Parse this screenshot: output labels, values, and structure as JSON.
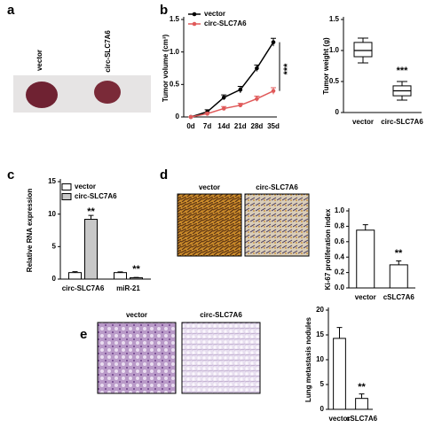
{
  "panel_labels": [
    "a",
    "b",
    "c",
    "d",
    "e"
  ],
  "image_labels": {
    "a": [
      "vector",
      "circ-SLC7A6"
    ],
    "d": [
      "vector",
      "circ-SLC7A6"
    ],
    "e": [
      "vector",
      "circ-SLC7A6"
    ]
  },
  "chart_data": [
    {
      "type": "line",
      "ylabel": "Tumor volume (cm³)",
      "categories": [
        "0d",
        "7d",
        "14d",
        "21d",
        "28d",
        "35d"
      ],
      "series": [
        {
          "name": "vector",
          "color": "#000000",
          "values": [
            0,
            0.08,
            0.3,
            0.42,
            0.75,
            1.15
          ],
          "errors": [
            0,
            0.03,
            0.04,
            0.05,
            0.05,
            0.06
          ]
        },
        {
          "name": "circ-SLC7A6",
          "color": "#e05a5a",
          "values": [
            0,
            0.05,
            0.13,
            0.18,
            0.28,
            0.4
          ],
          "errors": [
            0,
            0.02,
            0.03,
            0.03,
            0.04,
            0.05
          ]
        }
      ],
      "ylim": [
        0,
        1.5
      ],
      "yticks": [
        0,
        0.5,
        {
          "value": 1,
          "label": "1.0"
        },
        1.5
      ],
      "annotations": [
        "***"
      ]
    },
    {
      "type": "box",
      "ylabel": "Tumor weight (g)",
      "categories": [
        "vector",
        "circ-SLC7A6"
      ],
      "boxes": [
        {
          "min": 0.8,
          "q1": 0.9,
          "median": 1.0,
          "q3": 1.13,
          "max": 1.2
        },
        {
          "min": 0.2,
          "q1": 0.27,
          "median": 0.35,
          "q3": 0.43,
          "max": 0.5
        }
      ],
      "color": "#ffffff",
      "ylim": [
        0,
        1.5
      ],
      "yticks": [
        0,
        0.5,
        {
          "value": 1,
          "label": "1.0"
        },
        1.5
      ],
      "annotations": [
        "***"
      ]
    },
    {
      "type": "bar",
      "ylabel": "Relative RNA expression",
      "categories": [
        "circ-SLC7A6",
        "miR-21"
      ],
      "series": [
        {
          "name": "vector",
          "color": "#ffffff",
          "values": [
            1,
            1
          ],
          "errors": [
            0.15,
            0.1
          ]
        },
        {
          "name": "circ-SLC7A6",
          "color": "#c8c8c8",
          "values": [
            9.2,
            0.2
          ],
          "errors": [
            0.6,
            0.05
          ]
        }
      ],
      "ylim": [
        0,
        15
      ],
      "yticks": [
        0,
        5,
        10,
        15
      ],
      "annotations": [
        "**",
        "**"
      ]
    },
    {
      "type": "bar",
      "ylabel": "Ki-67 proliferation index",
      "categories": [
        "vector",
        "cSLC7A6"
      ],
      "values": [
        0.75,
        0.3
      ],
      "errors": [
        0.07,
        0.05
      ],
      "color": "#ffffff",
      "ylim": [
        0,
        1
      ],
      "yticks": [
        {
          "value": 0,
          "label": "0.0"
        },
        0.2,
        0.4,
        0.6,
        0.8,
        {
          "value": 1,
          "label": "1.0"
        }
      ],
      "annotations": [
        "**"
      ]
    },
    {
      "type": "bar",
      "ylabel": "Lung metastasis nodules",
      "categories": [
        "vector",
        "cSLC7A6"
      ],
      "values": [
        14.3,
        2.2
      ],
      "errors": [
        2.2,
        0.9
      ],
      "color": "#ffffff",
      "ylim": [
        0,
        20
      ],
      "yticks": [
        0,
        5,
        10,
        15,
        20
      ],
      "annotations": [
        "**"
      ]
    }
  ]
}
